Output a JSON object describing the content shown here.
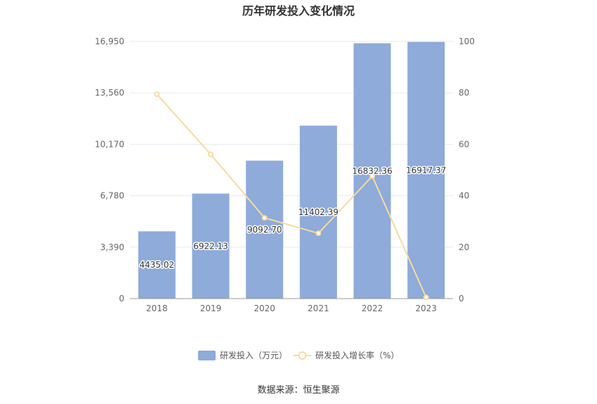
{
  "chart_data": {
    "type": "bar",
    "title": "历年研发投入变化情况",
    "categories": [
      "2018",
      "2019",
      "2020",
      "2021",
      "2022",
      "2023"
    ],
    "series": [
      {
        "name": "研发投入（万元）",
        "type": "bar",
        "axis": "left",
        "color": "#8eabd9",
        "values": [
          4435.02,
          6922.13,
          9092.7,
          11402.39,
          16832.36,
          16917.37
        ],
        "labels": [
          "4435.02",
          "6922.13",
          "9092.70",
          "11402.39",
          "16832.36",
          "16917.37"
        ]
      },
      {
        "name": "研发投入增长率（%）",
        "type": "line",
        "axis": "right",
        "color": "#f8d9a0",
        "values": [
          79.5,
          56.1,
          31.4,
          25.4,
          47.6,
          0.5
        ]
      }
    ],
    "y_left": {
      "ylim": [
        0,
        16950
      ],
      "ticks": [
        "0",
        "3,390",
        "6,780",
        "10,170",
        "13,560",
        "16,950"
      ]
    },
    "y_right": {
      "ylim": [
        0,
        100
      ],
      "ticks": [
        "0",
        "20",
        "40",
        "60",
        "80",
        "100"
      ]
    },
    "legend": "bottom-center",
    "grid": true
  },
  "footer": {
    "source": "数据来源：恒生聚源"
  }
}
